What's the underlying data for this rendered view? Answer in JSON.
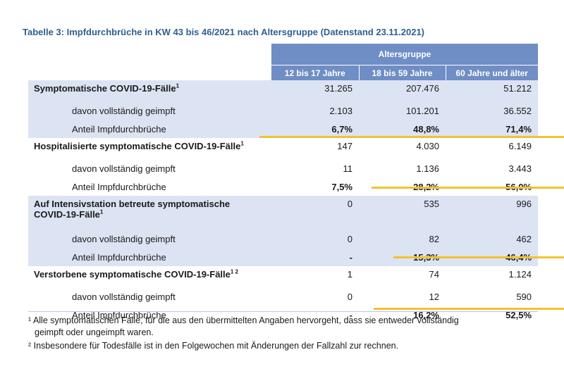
{
  "title": "Tabelle 3: Impfdurchbrüche in KW 43 bis 46/2021 nach Altersgruppe (Datenstand 23.11.2021)",
  "header": {
    "group": "Altersgruppe",
    "ages": [
      "12 bis 17 Jahre",
      "18 bis 59 Jahre",
      "60 Jahre und älter"
    ]
  },
  "sections": [
    {
      "label": "Symptomatische COVID-19-Fälle",
      "sup": "1",
      "values": [
        "31.265",
        "207.476",
        "51.212"
      ],
      "sub1": {
        "label": "davon vollständig geimpft",
        "values": [
          "2.103",
          "101.201",
          "36.552"
        ]
      },
      "sub2": {
        "label": "Anteil Impfdurchbrüche",
        "values": [
          "6,7%",
          "48,8%",
          "71,4%"
        ]
      }
    },
    {
      "label": "Hospitalisierte symptomatische COVID-19-Fälle",
      "sup": "1",
      "values": [
        "147",
        "4.030",
        "6.149"
      ],
      "sub1": {
        "label": "davon vollständig geimpft",
        "values": [
          "11",
          "1.136",
          "3.443"
        ]
      },
      "sub2": {
        "label": "Anteil Impfdurchbrüche",
        "values": [
          "7,5%",
          "28,2%",
          "56,0%"
        ]
      }
    },
    {
      "label_line1": "Auf Intensivstation betreute symptomatische",
      "label_line2": "COVID-19-Fälle",
      "sup": "1",
      "values": [
        "0",
        "535",
        "996"
      ],
      "sub1": {
        "label": "davon vollständig geimpft",
        "values": [
          "0",
          "82",
          "462"
        ]
      },
      "sub2": {
        "label": "Anteil Impfdurchbrüche",
        "values": [
          "-",
          "15,3%",
          "46,4%"
        ]
      }
    },
    {
      "label": "Verstorbene symptomatische COVID-19-Fälle",
      "sup": "1 2",
      "values": [
        "1",
        "74",
        "1.124"
      ],
      "sub1": {
        "label": "davon vollständig geimpft",
        "values": [
          "0",
          "12",
          "590"
        ]
      },
      "sub2": {
        "label": "Anteil Impfdurchbrüche",
        "values": [
          "-",
          "16,2%",
          "52,5%"
        ]
      }
    }
  ],
  "footnotes": {
    "f1_line1": "¹ Alle symptomatischen Fälle, für die aus den übermittelten Angaben hervorgeht, dass sie entweder vollständig",
    "f1_line2": "geimpft oder ungeimpft waren.",
    "f2": "² Insbesondere für Todesfälle ist in den Folgewochen mit Änderungen der Fallzahl zur rechnen."
  },
  "colors": {
    "title": "#2e5f91",
    "header": "#6f8ec5",
    "shade": "#dce3f2",
    "highlight": "#f2c230"
  }
}
